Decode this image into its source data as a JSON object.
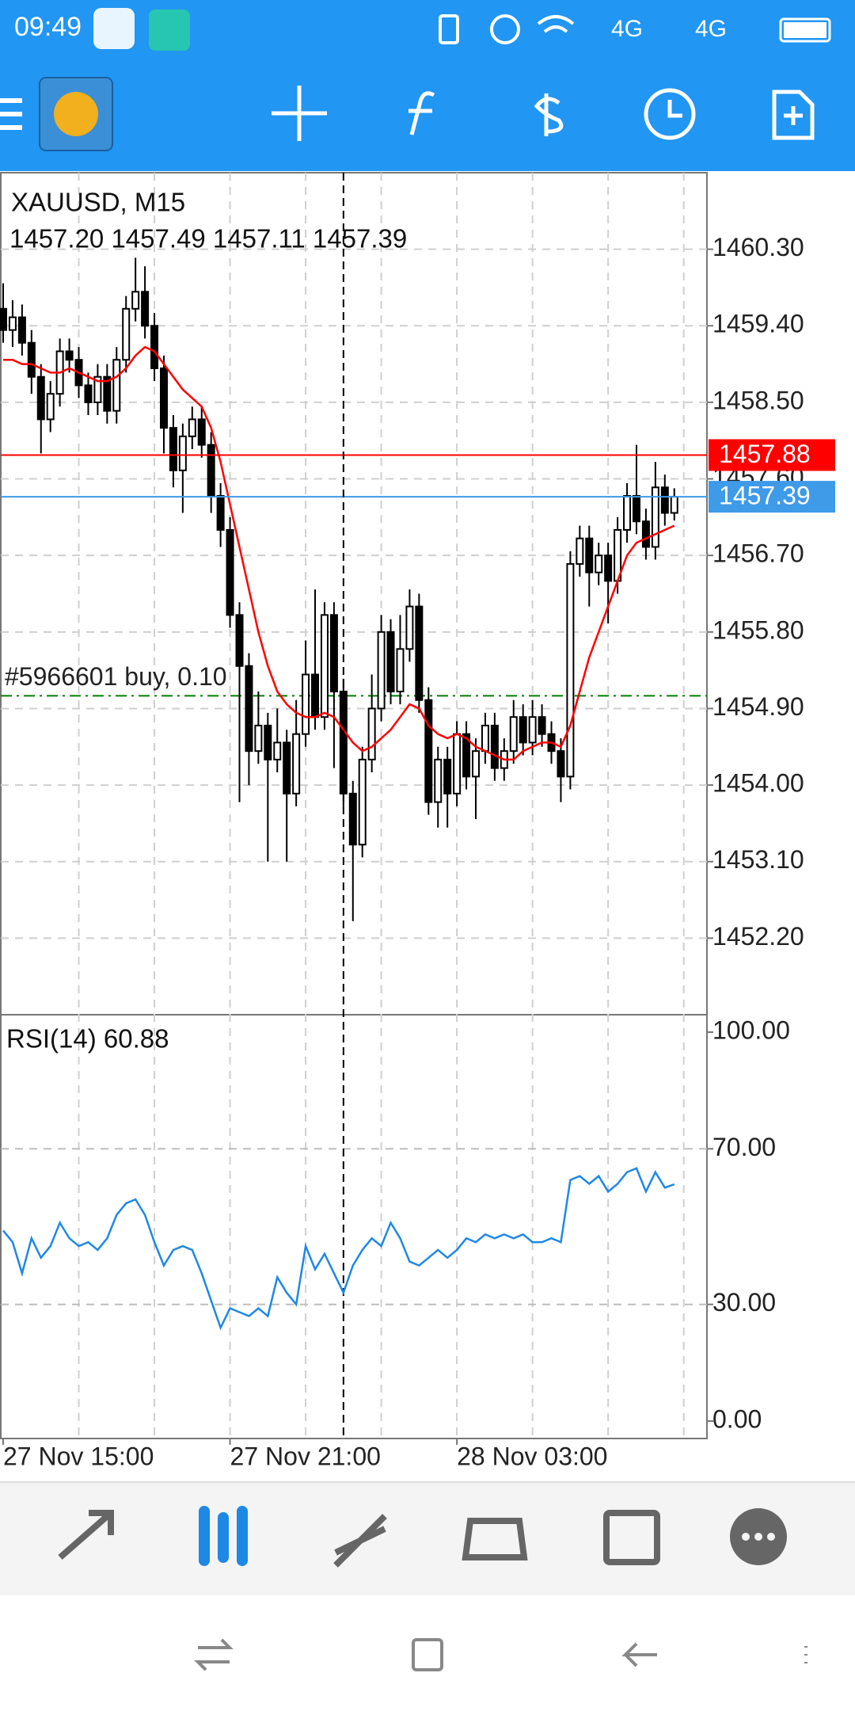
{
  "status_bar": {
    "time": "09:49",
    "network1": "4G",
    "network2": "4G"
  },
  "chart_data": {
    "type": "candlestick",
    "symbol": "XAUUSD, M15",
    "ohlc_label": "1457.20 1457.49 1457.11 1457.39",
    "ohlc": [
      [
        1459.6,
        1459.9,
        1459.2,
        1459.35
      ],
      [
        1459.35,
        1459.7,
        1459.15,
        1459.5
      ],
      [
        1459.5,
        1459.65,
        1459.05,
        1459.2
      ],
      [
        1459.2,
        1459.35,
        1458.6,
        1458.8
      ],
      [
        1458.8,
        1458.95,
        1457.9,
        1458.3
      ],
      [
        1458.3,
        1458.75,
        1458.15,
        1458.6
      ],
      [
        1458.6,
        1459.25,
        1458.45,
        1459.1
      ],
      [
        1459.1,
        1459.25,
        1458.85,
        1459.0
      ],
      [
        1459.0,
        1459.15,
        1458.55,
        1458.7
      ],
      [
        1458.7,
        1458.85,
        1458.35,
        1458.5
      ],
      [
        1458.5,
        1458.95,
        1458.35,
        1458.8
      ],
      [
        1458.8,
        1458.95,
        1458.25,
        1458.4
      ],
      [
        1458.4,
        1459.15,
        1458.25,
        1459.0
      ],
      [
        1459.0,
        1459.75,
        1458.85,
        1459.6
      ],
      [
        1459.6,
        1460.2,
        1459.45,
        1459.8
      ],
      [
        1459.8,
        1460.1,
        1459.25,
        1459.4
      ],
      [
        1459.4,
        1459.55,
        1458.75,
        1458.9
      ],
      [
        1458.9,
        1459.05,
        1457.9,
        1458.2
      ],
      [
        1458.2,
        1458.35,
        1457.5,
        1457.7
      ],
      [
        1457.7,
        1458.25,
        1457.2,
        1458.1
      ],
      [
        1458.1,
        1458.45,
        1457.95,
        1458.3
      ],
      [
        1458.3,
        1458.45,
        1457.85,
        1458.0
      ],
      [
        1458.0,
        1458.15,
        1457.2,
        1457.4
      ],
      [
        1457.4,
        1457.55,
        1456.8,
        1457.0
      ],
      [
        1457.0,
        1457.15,
        1455.85,
        1456.0
      ],
      [
        1456.0,
        1456.15,
        1453.8,
        1455.4
      ],
      [
        1455.4,
        1455.55,
        1454.0,
        1454.4
      ],
      [
        1454.4,
        1455.1,
        1454.25,
        1454.7
      ],
      [
        1454.7,
        1454.85,
        1453.1,
        1454.3
      ],
      [
        1454.3,
        1454.9,
        1454.15,
        1454.5
      ],
      [
        1454.5,
        1454.65,
        1453.1,
        1453.9
      ],
      [
        1453.9,
        1455.0,
        1453.75,
        1454.6
      ],
      [
        1454.6,
        1455.7,
        1454.45,
        1455.3
      ],
      [
        1455.3,
        1456.3,
        1454.65,
        1454.8
      ],
      [
        1454.8,
        1456.15,
        1454.65,
        1456.0
      ],
      [
        1456.0,
        1456.15,
        1454.2,
        1455.1
      ],
      [
        1455.1,
        1455.25,
        1453.75,
        1453.9
      ],
      [
        1453.9,
        1454.05,
        1452.4,
        1453.3
      ],
      [
        1453.3,
        1454.45,
        1453.15,
        1454.3
      ],
      [
        1454.3,
        1455.3,
        1454.15,
        1454.9
      ],
      [
        1454.9,
        1456.0,
        1454.75,
        1455.8
      ],
      [
        1455.8,
        1455.95,
        1454.95,
        1455.1
      ],
      [
        1455.1,
        1456.0,
        1454.95,
        1455.6
      ],
      [
        1455.6,
        1456.3,
        1455.45,
        1456.1
      ],
      [
        1456.1,
        1456.25,
        1454.85,
        1455.0
      ],
      [
        1455.0,
        1455.15,
        1453.65,
        1453.8
      ],
      [
        1453.8,
        1454.45,
        1453.5,
        1454.3
      ],
      [
        1454.3,
        1454.45,
        1453.5,
        1453.9
      ],
      [
        1453.9,
        1454.75,
        1453.75,
        1454.6
      ],
      [
        1454.6,
        1454.75,
        1453.95,
        1454.1
      ],
      [
        1454.1,
        1454.55,
        1453.6,
        1454.4
      ],
      [
        1454.4,
        1454.85,
        1454.25,
        1454.7
      ],
      [
        1454.7,
        1454.85,
        1454.05,
        1454.2
      ],
      [
        1454.2,
        1454.55,
        1454.05,
        1454.4
      ],
      [
        1454.4,
        1455.0,
        1454.25,
        1454.8
      ],
      [
        1454.8,
        1454.95,
        1454.35,
        1454.5
      ],
      [
        1454.5,
        1455.0,
        1454.35,
        1454.8
      ],
      [
        1454.8,
        1454.95,
        1454.45,
        1454.6
      ],
      [
        1454.6,
        1454.75,
        1454.25,
        1454.4
      ],
      [
        1454.4,
        1454.55,
        1453.8,
        1454.1
      ],
      [
        1454.1,
        1456.75,
        1453.95,
        1456.6
      ],
      [
        1456.6,
        1457.05,
        1456.45,
        1456.9
      ],
      [
        1456.9,
        1457.05,
        1456.1,
        1456.5
      ],
      [
        1456.5,
        1456.85,
        1456.35,
        1456.7
      ],
      [
        1456.7,
        1456.85,
        1455.9,
        1456.4
      ],
      [
        1456.4,
        1457.15,
        1456.25,
        1457.0
      ],
      [
        1457.0,
        1457.55,
        1456.85,
        1457.4
      ],
      [
        1457.4,
        1458.0,
        1456.95,
        1457.1
      ],
      [
        1457.1,
        1457.25,
        1456.65,
        1456.8
      ],
      [
        1456.8,
        1457.8,
        1456.65,
        1457.5
      ],
      [
        1457.5,
        1457.65,
        1457.05,
        1457.2
      ],
      [
        1457.2,
        1457.49,
        1457.11,
        1457.39
      ]
    ],
    "ma": {
      "color": "#ff0000",
      "values": [
        1459.0,
        1459.0,
        1458.95,
        1458.95,
        1458.9,
        1458.85,
        1458.85,
        1458.9,
        1458.85,
        1458.8,
        1458.75,
        1458.75,
        1458.8,
        1458.9,
        1459.05,
        1459.15,
        1459.1,
        1458.95,
        1458.8,
        1458.65,
        1458.55,
        1458.45,
        1458.2,
        1457.8,
        1457.3,
        1456.8,
        1456.3,
        1455.8,
        1455.4,
        1455.1,
        1454.95,
        1454.85,
        1454.8,
        1454.8,
        1454.85,
        1454.8,
        1454.65,
        1454.5,
        1454.4,
        1454.45,
        1454.55,
        1454.65,
        1454.8,
        1454.95,
        1454.9,
        1454.7,
        1454.6,
        1454.55,
        1454.6,
        1454.55,
        1454.45,
        1454.4,
        1454.35,
        1454.3,
        1454.3,
        1454.4,
        1454.45,
        1454.5,
        1454.5,
        1454.45,
        1454.7,
        1455.1,
        1455.5,
        1455.8,
        1456.1,
        1456.4,
        1456.7,
        1456.85,
        1456.9,
        1456.95,
        1457.0,
        1457.05
      ]
    },
    "ylim": [
      1451.3,
      1461.2
    ],
    "yticks": [
      {
        "value": 1460.3,
        "label": "1460.30"
      },
      {
        "value": 1459.4,
        "label": "1459.40"
      },
      {
        "value": 1458.5,
        "label": "1458.50"
      },
      {
        "value": 1457.6,
        "label": "1457.60"
      },
      {
        "value": 1456.7,
        "label": "1456.70"
      },
      {
        "value": 1455.8,
        "label": "1455.80"
      },
      {
        "value": 1454.9,
        "label": "1454.90"
      },
      {
        "value": 1454.0,
        "label": "1454.00"
      },
      {
        "value": 1453.1,
        "label": "1453.10"
      },
      {
        "value": 1452.2,
        "label": "1452.20"
      }
    ],
    "xticks": [
      {
        "value": 0,
        "label": "27 Nov 15:00"
      },
      {
        "value": 24,
        "label": "27 Nov 21:00"
      },
      {
        "value": 48,
        "label": "28 Nov 03:00"
      }
    ],
    "grid": true,
    "ask_line": {
      "value": 1457.88,
      "label": "1457.88",
      "color": "#ff0000"
    },
    "bid_line": {
      "value": 1457.39,
      "label": "1457.39",
      "color": "#3f9ae8"
    },
    "trade": {
      "label": "#5966601 buy, 0.10",
      "value": 1455.05,
      "color": "#008000"
    },
    "crosshair_index": 36,
    "rsi": {
      "label": "RSI(14) 60.88",
      "color": "#1e88e5",
      "values": [
        49,
        46,
        38,
        47,
        42,
        45,
        51,
        47,
        45,
        46,
        44,
        47,
        53,
        56,
        57,
        53,
        46,
        40,
        44,
        45,
        44,
        38,
        31,
        24,
        29,
        28,
        27,
        29,
        27,
        37,
        33,
        30,
        45,
        39,
        43,
        38,
        33,
        40,
        44,
        47,
        45,
        51,
        47,
        41,
        40,
        42,
        44,
        42,
        44,
        47,
        46,
        48,
        47,
        48,
        47,
        48,
        46,
        46,
        47,
        46,
        62,
        63,
        61,
        63,
        59,
        61,
        64,
        65,
        59,
        64,
        60,
        60.88
      ],
      "ylim": [
        0,
        100
      ],
      "yticks": [
        {
          "value": 100,
          "label": "100.00"
        },
        {
          "value": 70,
          "label": "70.00"
        },
        {
          "value": 30,
          "label": "30.00"
        },
        {
          "value": 0,
          "label": "0.00"
        }
      ]
    }
  }
}
